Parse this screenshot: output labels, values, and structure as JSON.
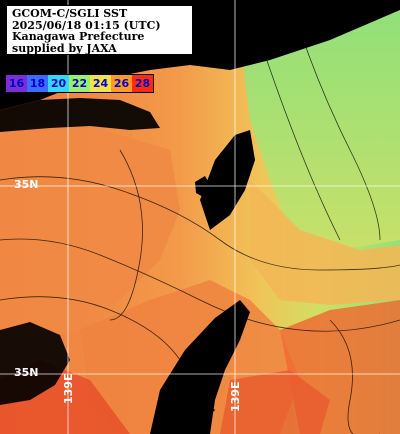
{
  "title": {
    "lines": [
      "GCOM-C/SGLI SST",
      "2025/06/18 01:15 (UTC)",
      "Kanagawa Prefecture",
      "supplied by JAXA"
    ]
  },
  "legend": {
    "items": [
      {
        "label": "16",
        "color": "#7a2fd6"
      },
      {
        "label": "18",
        "color": "#3b6cff"
      },
      {
        "label": "20",
        "color": "#36d7ff"
      },
      {
        "label": "22",
        "color": "#9af06a"
      },
      {
        "label": "24",
        "color": "#f2e34a"
      },
      {
        "label": "26",
        "color": "#ff9a24"
      },
      {
        "label": "28",
        "color": "#ff2a10"
      }
    ],
    "text_color": "#0000cc"
  },
  "grid_labels": {
    "lat_left_top": "35N",
    "lat_left_bottom": "35N",
    "lon_bottom_left": "139E",
    "lon_bottom_right": "139E"
  },
  "colors": {
    "land": "#000000",
    "grid": "#ffffff",
    "warm_sea": "#f08a45",
    "hot_sea": "#e8582c",
    "cool_sea": "#9ee26a",
    "mid_sea": "#f2b650"
  }
}
